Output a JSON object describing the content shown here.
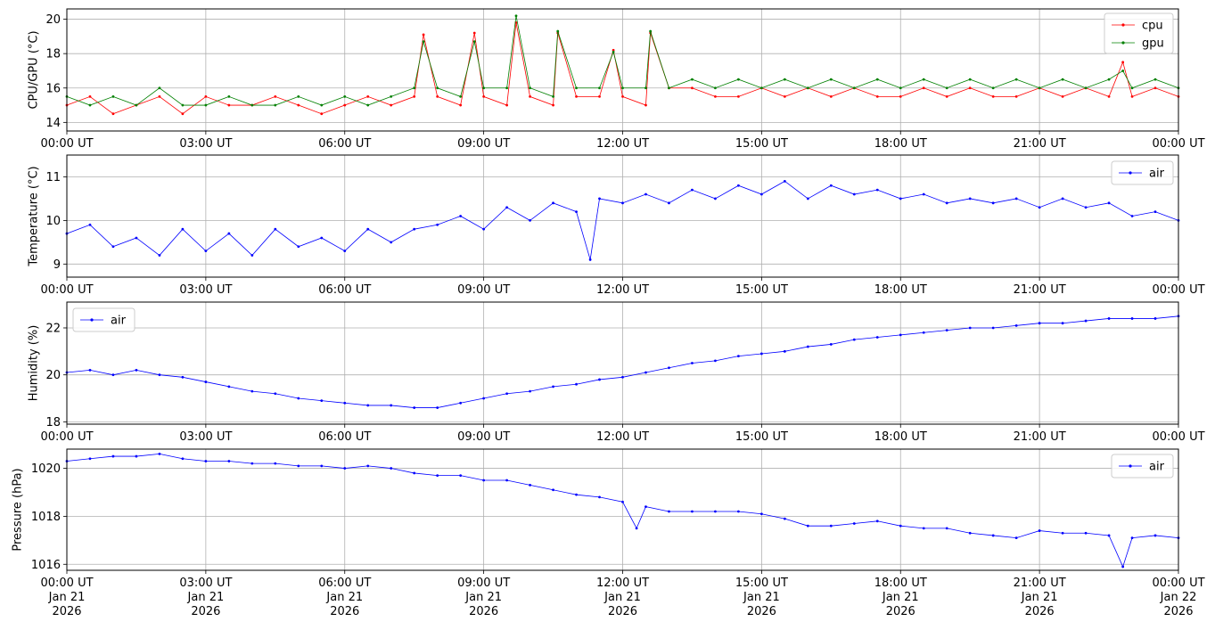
{
  "chart_data": [
    {
      "type": "line",
      "ylabel": "CPU/GPU (°C)",
      "ylim": [
        13.5,
        20.6
      ],
      "yticks": [
        14,
        16,
        18,
        20
      ],
      "xlim": [
        0,
        24
      ],
      "xtick_labels": [
        "00:00 UT",
        "03:00 UT",
        "06:00 UT",
        "09:00 UT",
        "12:00 UT",
        "15:00 UT",
        "18:00 UT",
        "21:00 UT",
        "00:00 UT"
      ],
      "grid": true,
      "legend": "top-right",
      "series": [
        {
          "name": "cpu",
          "color": "#ff0000",
          "x": [
            0,
            0.5,
            1,
            1.5,
            2,
            2.5,
            3,
            3.5,
            4,
            4.5,
            5,
            5.5,
            6,
            6.5,
            7,
            7.5,
            7.7,
            8,
            8.5,
            8.8,
            9,
            9.5,
            9.7,
            10,
            10.5,
            10.6,
            11,
            11.5,
            11.8,
            12,
            12.5,
            12.6,
            13,
            13.5,
            14,
            14.5,
            15,
            15.5,
            16,
            16.5,
            17,
            17.5,
            18,
            18.5,
            19,
            19.5,
            20,
            20.5,
            21,
            21.5,
            22,
            22.5,
            22.8,
            23,
            23.5,
            24
          ],
          "values": [
            15,
            15.5,
            14.5,
            15,
            15.5,
            14.5,
            15.5,
            15,
            15,
            15.5,
            15,
            14.5,
            15,
            15.5,
            15,
            15.5,
            19.1,
            15.5,
            15,
            19.2,
            15.5,
            15,
            19.8,
            15.5,
            15,
            19.2,
            15.5,
            15.5,
            18.2,
            15.5,
            15,
            19.2,
            16,
            16,
            15.5,
            15.5,
            16,
            15.5,
            16,
            15.5,
            16,
            15.5,
            15.5,
            16,
            15.5,
            16,
            15.5,
            15.5,
            16,
            15.5,
            16,
            15.5,
            17.5,
            15.5,
            16,
            15.5
          ]
        },
        {
          "name": "gpu",
          "color": "#008000",
          "x": [
            0,
            0.5,
            1,
            1.5,
            2,
            2.5,
            3,
            3.5,
            4,
            4.5,
            5,
            5.5,
            6,
            6.5,
            7,
            7.5,
            7.7,
            8,
            8.5,
            8.8,
            9,
            9.5,
            9.7,
            10,
            10.5,
            10.6,
            11,
            11.5,
            11.8,
            12,
            12.5,
            12.6,
            13,
            13.5,
            14,
            14.5,
            15,
            15.5,
            16,
            16.5,
            17,
            17.5,
            18,
            18.5,
            19,
            19.5,
            20,
            20.5,
            21,
            21.5,
            22,
            22.5,
            22.8,
            23,
            23.5,
            24
          ],
          "values": [
            15.5,
            15,
            15.5,
            15,
            16,
            15,
            15,
            15.5,
            15,
            15,
            15.5,
            15,
            15.5,
            15,
            15.5,
            16,
            18.7,
            16,
            15.5,
            18.7,
            16,
            16,
            20.2,
            16,
            15.5,
            19.3,
            16,
            16,
            18.1,
            16,
            16,
            19.3,
            16,
            16.5,
            16,
            16.5,
            16,
            16.5,
            16,
            16.5,
            16,
            16.5,
            16,
            16.5,
            16,
            16.5,
            16,
            16.5,
            16,
            16.5,
            16,
            16.5,
            17,
            16,
            16.5,
            16
          ]
        }
      ]
    },
    {
      "type": "line",
      "ylabel": "Temperature (°C)",
      "ylim": [
        8.7,
        11.5
      ],
      "yticks": [
        9,
        10,
        11
      ],
      "xlim": [
        0,
        24
      ],
      "xtick_labels": [
        "00:00 UT",
        "03:00 UT",
        "06:00 UT",
        "09:00 UT",
        "12:00 UT",
        "15:00 UT",
        "18:00 UT",
        "21:00 UT",
        "00:00 UT"
      ],
      "grid": true,
      "legend": "top-right",
      "series": [
        {
          "name": "air",
          "color": "#0000ff",
          "x": [
            0,
            0.5,
            1,
            1.5,
            2,
            2.5,
            3,
            3.5,
            4,
            4.5,
            5,
            5.5,
            6,
            6.5,
            7,
            7.5,
            8,
            8.5,
            9,
            9.5,
            10,
            10.5,
            11,
            11.3,
            11.5,
            12,
            12.5,
            13,
            13.5,
            14,
            14.5,
            15,
            15.5,
            16,
            16.5,
            17,
            17.5,
            18,
            18.5,
            19,
            19.5,
            20,
            20.5,
            21,
            21.5,
            22,
            22.5,
            23,
            23.5,
            24
          ],
          "values": [
            9.7,
            9.9,
            9.4,
            9.6,
            9.2,
            9.8,
            9.3,
            9.7,
            9.2,
            9.8,
            9.4,
            9.6,
            9.3,
            9.8,
            9.5,
            9.8,
            9.9,
            10.1,
            9.8,
            10.3,
            10.0,
            10.4,
            10.2,
            9.1,
            10.5,
            10.4,
            10.6,
            10.4,
            10.7,
            10.5,
            10.8,
            10.6,
            10.9,
            10.5,
            10.8,
            10.6,
            10.7,
            10.5,
            10.6,
            10.4,
            10.5,
            10.4,
            10.5,
            10.3,
            10.5,
            10.3,
            10.4,
            10.1,
            10.2,
            10.0
          ]
        }
      ]
    },
    {
      "type": "line",
      "ylabel": "Humidity (%)",
      "ylim": [
        17.9,
        23.1
      ],
      "yticks": [
        18,
        20,
        22
      ],
      "xlim": [
        0,
        24
      ],
      "xtick_labels": [
        "00:00 UT",
        "03:00 UT",
        "06:00 UT",
        "09:00 UT",
        "12:00 UT",
        "15:00 UT",
        "18:00 UT",
        "21:00 UT",
        "00:00 UT"
      ],
      "grid": true,
      "legend": "top-left",
      "series": [
        {
          "name": "air",
          "color": "#0000ff",
          "x": [
            0,
            0.5,
            1,
            1.5,
            2,
            2.5,
            3,
            3.5,
            4,
            4.5,
            5,
            5.5,
            6,
            6.5,
            7,
            7.5,
            8,
            8.5,
            9,
            9.5,
            10,
            10.5,
            11,
            11.5,
            12,
            12.5,
            13,
            13.5,
            14,
            14.5,
            15,
            15.5,
            16,
            16.5,
            17,
            17.5,
            18,
            18.5,
            19,
            19.5,
            20,
            20.5,
            21,
            21.5,
            22,
            22.5,
            23,
            23.5,
            24
          ],
          "values": [
            20.1,
            20.2,
            20.0,
            20.2,
            20.0,
            19.9,
            19.7,
            19.5,
            19.3,
            19.2,
            19.0,
            18.9,
            18.8,
            18.7,
            18.7,
            18.6,
            18.6,
            18.8,
            19.0,
            19.2,
            19.3,
            19.5,
            19.6,
            19.8,
            19.9,
            20.1,
            20.3,
            20.5,
            20.6,
            20.8,
            20.9,
            21.0,
            21.2,
            21.3,
            21.5,
            21.6,
            21.7,
            21.8,
            21.9,
            22.0,
            22.0,
            22.1,
            22.2,
            22.2,
            22.3,
            22.4,
            22.4,
            22.4,
            22.5
          ]
        }
      ]
    },
    {
      "type": "line",
      "ylabel": "Pressure (hPa)",
      "ylim": [
        1015.75,
        1020.8
      ],
      "yticks": [
        1016,
        1018,
        1020
      ],
      "xlim": [
        0,
        24
      ],
      "xtick_labels": [
        "00:00 UT\nJan 21\n2026",
        "03:00 UT\nJan 21\n2026",
        "06:00 UT\nJan 21\n2026",
        "09:00 UT\nJan 21\n2026",
        "12:00 UT\nJan 21\n2026",
        "15:00 UT\nJan 21\n2026",
        "18:00 UT\nJan 21\n2026",
        "21:00 UT\nJan 21\n2026",
        "00:00 UT\nJan 22\n2026"
      ],
      "grid": true,
      "legend": "top-right",
      "series": [
        {
          "name": "air",
          "color": "#0000ff",
          "x": [
            0,
            0.5,
            1,
            1.5,
            2,
            2.5,
            3,
            3.5,
            4,
            4.5,
            5,
            5.5,
            6,
            6.5,
            7,
            7.5,
            8,
            8.5,
            9,
            9.5,
            10,
            10.5,
            11,
            11.5,
            12,
            12.3,
            12.5,
            13,
            13.5,
            14,
            14.5,
            15,
            15.5,
            16,
            16.5,
            17,
            17.5,
            18,
            18.5,
            19,
            19.5,
            20,
            20.5,
            21,
            21.5,
            22,
            22.5,
            22.8,
            23,
            23.5,
            24
          ],
          "values": [
            1020.3,
            1020.4,
            1020.5,
            1020.5,
            1020.6,
            1020.4,
            1020.3,
            1020.3,
            1020.2,
            1020.2,
            1020.1,
            1020.1,
            1020.0,
            1020.1,
            1020.0,
            1019.8,
            1019.7,
            1019.7,
            1019.5,
            1019.5,
            1019.3,
            1019.1,
            1018.9,
            1018.8,
            1018.6,
            1017.5,
            1018.4,
            1018.2,
            1018.2,
            1018.2,
            1018.2,
            1018.1,
            1017.9,
            1017.6,
            1017.6,
            1017.7,
            1017.8,
            1017.6,
            1017.5,
            1017.5,
            1017.3,
            1017.2,
            1017.1,
            1017.4,
            1017.3,
            1017.3,
            1017.2,
            1015.9,
            1017.1,
            1017.2,
            1017.1
          ]
        }
      ]
    }
  ]
}
